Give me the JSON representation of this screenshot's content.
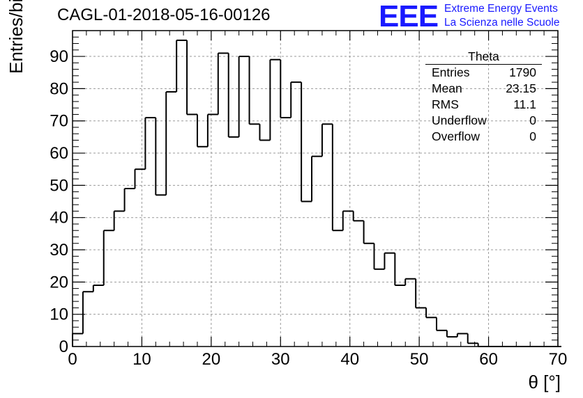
{
  "title": "CAGL-01-2018-05-16-00126",
  "logo": {
    "mark": "EEE",
    "line1": "Extreme Energy Events",
    "line2": "La Scienza nelle Scuole"
  },
  "stats": {
    "title": "Theta",
    "rows": [
      {
        "label": "Entries",
        "value": "1790"
      },
      {
        "label": "Mean",
        "value": "23.15"
      },
      {
        "label": "RMS",
        "value": "11.1"
      },
      {
        "label": "Underflow",
        "value": "0"
      },
      {
        "label": "Overflow",
        "value": "0"
      }
    ]
  },
  "colors": {
    "line": "#000000",
    "grid": "#999999",
    "logo": "#1a1aff"
  },
  "chart_data": {
    "type": "bar",
    "style": "step-histogram",
    "xlabel": "θ [°]",
    "ylabel": "Entries/bin",
    "xlim": [
      0,
      70
    ],
    "ylim": [
      0,
      98
    ],
    "x_ticks": [
      0,
      10,
      20,
      30,
      40,
      50,
      60,
      70
    ],
    "y_ticks": [
      0,
      10,
      20,
      30,
      40,
      50,
      60,
      70,
      80,
      90
    ],
    "grid": true,
    "bin_width": 1.5,
    "bin_start": 0,
    "values": [
      4,
      17,
      19,
      36,
      42,
      49,
      55,
      71,
      47,
      79,
      95,
      72,
      62,
      72,
      91,
      65,
      90,
      69,
      64,
      89,
      71,
      82,
      45,
      59,
      69,
      36,
      42,
      39,
      32,
      24,
      29,
      19,
      21,
      12,
      9,
      5,
      3,
      4,
      1,
      0,
      0,
      0,
      0,
      0,
      0,
      0,
      0
    ]
  }
}
